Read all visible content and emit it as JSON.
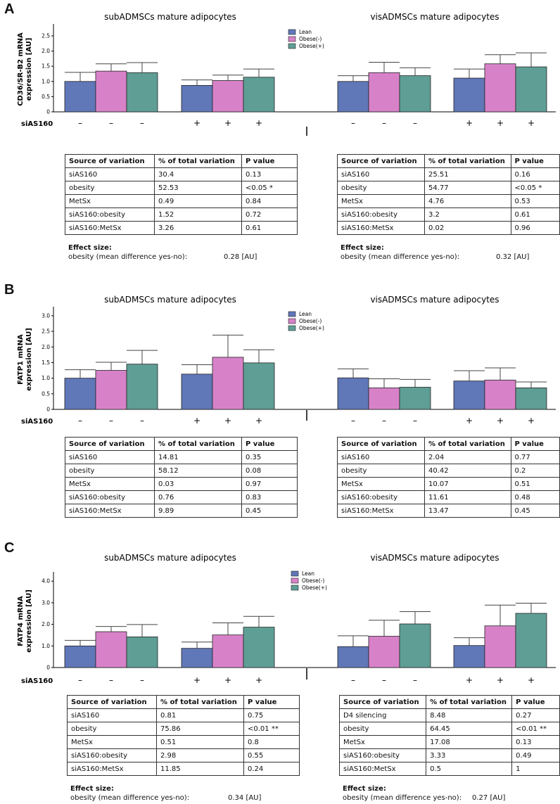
{
  "colors": {
    "lean": "#6077b8",
    "obese_minus": "#d782c8",
    "obese_plus": "#5f9e95"
  },
  "legend": [
    "Lean",
    "Obese(-)",
    "Obese(+)"
  ],
  "row_label": "siAS160",
  "condition_marks": [
    "–",
    "–",
    "–",
    "+",
    "+",
    "+"
  ],
  "table_headers": [
    "Source of variation",
    "% of total variation",
    "P value"
  ],
  "panels": [
    {
      "letter": "A",
      "ylabel_line1": "CD36/SR-B2 mRNA",
      "ylabel_line2": "expression [AU]",
      "yticks": [
        "0",
        "0.5",
        "1.0",
        "1.5",
        "2.0",
        "2.5"
      ],
      "left_title": "subADMSCs mature adipocytes",
      "right_title": "visADMSCs mature adipocytes",
      "left_table": [
        [
          "siAS160",
          "30.4",
          "0.13"
        ],
        [
          "obesity",
          "52.53",
          "<0.05 *"
        ],
        [
          "MetSx",
          "0.49",
          "0.84"
        ],
        [
          "siAS160:obesity",
          "1.52",
          "0.72"
        ],
        [
          "siAS160:MetSx",
          "3.26",
          "0.61"
        ]
      ],
      "right_table": [
        [
          "siAS160",
          "25.51",
          "0.16"
        ],
        [
          "obesity",
          "54.77",
          "<0.05 *"
        ],
        [
          "MetSx",
          "4.76",
          "0.53"
        ],
        [
          "siAS160:obesity",
          "3.2",
          "0.61"
        ],
        [
          "siAS160:MetSx",
          "0.02",
          "0.96"
        ]
      ],
      "left_effect": {
        "title": "Effect size:",
        "label": "obesity (mean difference yes-no):",
        "value": "0.28 [AU]"
      },
      "right_effect": {
        "title": "Effect size:",
        "label": "obesity (mean difference yes-no):",
        "value": "0.32 [AU]"
      }
    },
    {
      "letter": "B",
      "ylabel_line1": "FATP1 mRNA",
      "ylabel_line2": "expression [AU]",
      "yticks": [
        "0",
        "0.5",
        "1.0",
        "1.5",
        "2.0",
        "2.5",
        "3.0"
      ],
      "left_title": "subADMSCs mature adipocytes",
      "right_title": "visADMSCs mature adipocytes",
      "left_table": [
        [
          "siAS160",
          "14.81",
          "0.35"
        ],
        [
          "obesity",
          "58.12",
          "0.08"
        ],
        [
          "MetSx",
          "0.03",
          "0.97"
        ],
        [
          "siAS160:obesity",
          "0.76",
          "0.83"
        ],
        [
          "siAS160:MetSx",
          "9.89",
          "0.45"
        ]
      ],
      "right_table": [
        [
          "siAS160",
          "2.04",
          "0.77"
        ],
        [
          "obesity",
          "40.42",
          "0.2"
        ],
        [
          "MetSx",
          "10.07",
          "0.51"
        ],
        [
          "siAS160:obesity",
          "11.61",
          "0.48"
        ],
        [
          "siAS160:MetSx",
          "13.47",
          "0.45"
        ]
      ]
    },
    {
      "letter": "C",
      "ylabel_line1": "FATP4 mRNA",
      "ylabel_line2": "expression [AU]",
      "yticks": [
        "0",
        "1.0",
        "2.0",
        "3.0",
        "4.0"
      ],
      "left_title": "subADMSCs mature adipocytes",
      "right_title": "visADMSCs mature adipocytes",
      "left_table": [
        [
          "siAS160",
          "0.81",
          "0.75"
        ],
        [
          "obesity",
          "75.86",
          "<0.01 **"
        ],
        [
          "MetSx",
          "0.51",
          "0.8"
        ],
        [
          "siAS160:obesity",
          "2.98",
          "0.55"
        ],
        [
          "siAS160:MetSx",
          "11.85",
          "0.24"
        ]
      ],
      "right_table": [
        [
          "D4 silencing",
          "8.48",
          "0.27"
        ],
        [
          "obesity",
          "64.45",
          "<0.01 **"
        ],
        [
          "MetSx",
          "17.08",
          "0.13"
        ],
        [
          "siAS160:obesity",
          "3.33",
          "0.49"
        ],
        [
          "siAS160:MetSx",
          "0.5",
          "1"
        ]
      ],
      "left_effect": {
        "title": "Effect size:",
        "label": "obesity (mean difference yes-no):",
        "value": "0.34 [AU]"
      },
      "right_effect": {
        "title": "Effect size:",
        "label": "obesity (mean difference yes-no):",
        "value": "0.27 [AU]"
      }
    }
  ],
  "chart_data": [
    {
      "type": "bar",
      "title": "CD36/SR-B2 mRNA expression",
      "ylabel": "CD36/SR-B2 mRNA expression [AU]",
      "ylim": [
        0,
        2.8
      ],
      "groups": [
        "subADMSCs siAS160 –",
        "subADMSCs siAS160 +",
        "visADMSCs siAS160 –",
        "visADMSCs siAS160 +"
      ],
      "series": [
        {
          "name": "Lean",
          "values": [
            1.0,
            0.87,
            1.0,
            1.11
          ],
          "error": [
            0.3,
            0.18,
            0.19,
            0.3
          ]
        },
        {
          "name": "Obese(-)",
          "values": [
            1.34,
            1.03,
            1.29,
            1.58
          ],
          "error": [
            0.24,
            0.18,
            0.34,
            0.3
          ]
        },
        {
          "name": "Obese(+)",
          "values": [
            1.29,
            1.14,
            1.19,
            1.48
          ],
          "error": [
            0.33,
            0.27,
            0.26,
            0.46
          ]
        }
      ]
    },
    {
      "type": "bar",
      "title": "FATP1 mRNA expression",
      "ylabel": "FATP1 mRNA expression [AU]",
      "ylim": [
        0,
        3.2
      ],
      "groups": [
        "subADMSCs siAS160 –",
        "subADMSCs siAS160 +",
        "visADMSCs siAS160 –",
        "visADMSCs siAS160 +"
      ],
      "series": [
        {
          "name": "Lean",
          "values": [
            1.0,
            1.13,
            1.01,
            0.91
          ],
          "error": [
            0.27,
            0.3,
            0.29,
            0.33
          ]
        },
        {
          "name": "Obese(-)",
          "values": [
            1.25,
            1.67,
            0.69,
            0.94
          ],
          "error": [
            0.26,
            0.71,
            0.29,
            0.39
          ]
        },
        {
          "name": "Obese(+)",
          "values": [
            1.45,
            1.49,
            0.71,
            0.69
          ],
          "error": [
            0.44,
            0.42,
            0.25,
            0.19
          ]
        }
      ]
    },
    {
      "type": "bar",
      "title": "FATP4 mRNA expression",
      "ylabel": "FATP4 mRNA expression [AU]",
      "ylim": [
        0,
        4.3
      ],
      "groups": [
        "subADMSCs siAS160 –",
        "subADMSCs siAS160 +",
        "visADMSCs siAS160 –",
        "visADMSCs siAS160 +"
      ],
      "series": [
        {
          "name": "Lean",
          "values": [
            1.0,
            0.89,
            0.97,
            1.02
          ],
          "error": [
            0.26,
            0.29,
            0.5,
            0.36
          ]
        },
        {
          "name": "Obese(-)",
          "values": [
            1.66,
            1.51,
            1.45,
            1.93
          ],
          "error": [
            0.24,
            0.56,
            0.74,
            0.96
          ]
        },
        {
          "name": "Obese(+)",
          "values": [
            1.42,
            1.87,
            2.02,
            2.51
          ],
          "error": [
            0.57,
            0.5,
            0.57,
            0.47
          ]
        }
      ]
    }
  ]
}
